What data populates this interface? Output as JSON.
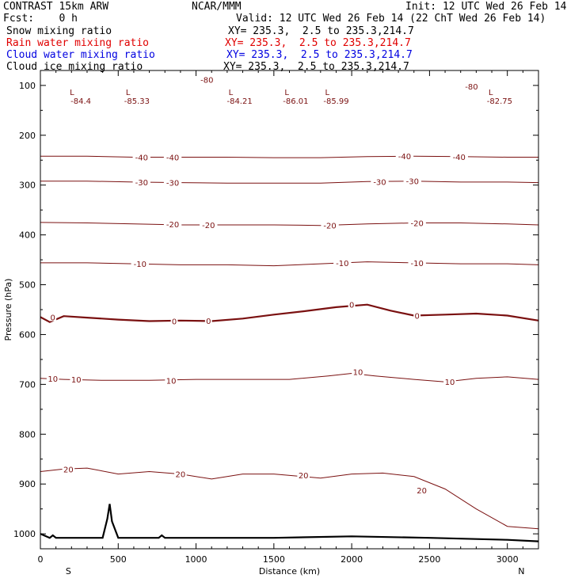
{
  "header": {
    "title_left": "CONTRAST 15km ARW",
    "title_center": "NCAR/MMM",
    "init": "Init: 12 UTC Wed 26 Feb 14",
    "fcst": "Fcst:    0 h",
    "valid": "Valid: 12 UTC Wed 26 Feb 14 (22 ChT Wed 26 Feb 14)",
    "fields": [
      {
        "name": "Snow mixing ratio",
        "xy": "XY= 235.3,  2.5 to 235.3,214.7",
        "color": "#000000"
      },
      {
        "name": "Rain water mixing ratio",
        "xy": "XY= 235.3,  2.5 to 235.3,214.7",
        "color": "#e00000"
      },
      {
        "name": "Cloud water mixing ratio",
        "xy": "XY= 235.3,  2.5 to 235.3,214.7",
        "color": "#0000e0"
      },
      {
        "name": "Cloud ice mixing ratio",
        "xy": "XY= 235.3,  2.5 to 235.3,214.7",
        "color": "#000000"
      }
    ]
  },
  "chart_data": {
    "type": "line",
    "xlabel": "Distance (km)",
    "ylabel": "Pressure (hPa)",
    "xlim": [
      0,
      3200
    ],
    "ylim": [
      1030,
      70
    ],
    "x_ticks": [
      0,
      500,
      1000,
      1500,
      2000,
      2500,
      3000
    ],
    "y_ticks": [
      100,
      200,
      300,
      400,
      500,
      600,
      700,
      800,
      900,
      1000
    ],
    "x_endpoints": {
      "left": "S",
      "right": "N"
    },
    "contour_color": "#7a1010",
    "terrain_color": "#000000",
    "isotherms": [
      {
        "value": 20,
        "p": [
          [
            0,
            875
          ],
          [
            150,
            870
          ],
          [
            300,
            868
          ],
          [
            500,
            880
          ],
          [
            700,
            875
          ],
          [
            900,
            880
          ],
          [
            1100,
            890
          ],
          [
            1300,
            880
          ],
          [
            1500,
            880
          ],
          [
            1800,
            888
          ],
          [
            2000,
            880
          ],
          [
            2200,
            878
          ],
          [
            2400,
            885
          ],
          [
            2600,
            910
          ],
          [
            2800,
            950
          ],
          [
            3000,
            985
          ],
          [
            3200,
            990
          ]
        ]
      },
      {
        "value": 10,
        "p": [
          [
            0,
            688
          ],
          [
            150,
            690
          ],
          [
            400,
            692
          ],
          [
            700,
            692
          ],
          [
            1000,
            690
          ],
          [
            1300,
            690
          ],
          [
            1600,
            690
          ],
          [
            1850,
            683
          ],
          [
            2000,
            678
          ],
          [
            2150,
            683
          ],
          [
            2400,
            690
          ],
          [
            2600,
            695
          ],
          [
            2800,
            688
          ],
          [
            3000,
            685
          ],
          [
            3200,
            690
          ]
        ]
      },
      {
        "value": 0,
        "p": [
          [
            0,
            565
          ],
          [
            60,
            575
          ],
          [
            150,
            563
          ],
          [
            300,
            566
          ],
          [
            500,
            570
          ],
          [
            700,
            573
          ],
          [
            900,
            572
          ],
          [
            1100,
            573
          ],
          [
            1300,
            568
          ],
          [
            1500,
            560
          ],
          [
            1700,
            553
          ],
          [
            1900,
            545
          ],
          [
            2100,
            540
          ],
          [
            2250,
            552
          ],
          [
            2400,
            562
          ],
          [
            2600,
            560
          ],
          [
            2800,
            558
          ],
          [
            3000,
            562
          ],
          [
            3200,
            572
          ]
        ]
      },
      {
        "value": -10,
        "p": [
          [
            0,
            456
          ],
          [
            300,
            456
          ],
          [
            600,
            458
          ],
          [
            900,
            460
          ],
          [
            1200,
            460
          ],
          [
            1500,
            462
          ],
          [
            1800,
            458
          ],
          [
            2100,
            454
          ],
          [
            2400,
            456
          ],
          [
            2700,
            458
          ],
          [
            3000,
            458
          ],
          [
            3200,
            460
          ]
        ]
      },
      {
        "value": -20,
        "p": [
          [
            0,
            375
          ],
          [
            300,
            376
          ],
          [
            600,
            378
          ],
          [
            900,
            380
          ],
          [
            1200,
            380
          ],
          [
            1500,
            380
          ],
          [
            1800,
            381
          ],
          [
            2100,
            378
          ],
          [
            2400,
            376
          ],
          [
            2700,
            376
          ],
          [
            3000,
            378
          ],
          [
            3200,
            380
          ]
        ]
      },
      {
        "value": -30,
        "p": [
          [
            0,
            292
          ],
          [
            300,
            292
          ],
          [
            600,
            294
          ],
          [
            900,
            295
          ],
          [
            1200,
            296
          ],
          [
            1500,
            296
          ],
          [
            1800,
            296
          ],
          [
            2100,
            293
          ],
          [
            2400,
            292
          ],
          [
            2700,
            294
          ],
          [
            3000,
            294
          ],
          [
            3200,
            295
          ]
        ]
      },
      {
        "value": -40,
        "p": [
          [
            0,
            242
          ],
          [
            300,
            242
          ],
          [
            600,
            244
          ],
          [
            900,
            244
          ],
          [
            1200,
            244
          ],
          [
            1500,
            245
          ],
          [
            1800,
            245
          ],
          [
            2100,
            243
          ],
          [
            2400,
            242
          ],
          [
            2700,
            243
          ],
          [
            3000,
            244
          ],
          [
            3200,
            244
          ]
        ]
      }
    ],
    "temperature_labels": [
      {
        "text": "20",
        "x": 180,
        "p": 870
      },
      {
        "text": "20",
        "x": 900,
        "p": 880
      },
      {
        "text": "20",
        "x": 1690,
        "p": 882
      },
      {
        "text": "20",
        "x": 2450,
        "p": 912
      },
      {
        "text": "10",
        "x": 80,
        "p": 688
      },
      {
        "text": "10",
        "x": 230,
        "p": 690
      },
      {
        "text": "10",
        "x": 840,
        "p": 692
      },
      {
        "text": "10",
        "x": 2040,
        "p": 675
      },
      {
        "text": "10",
        "x": 2630,
        "p": 695
      },
      {
        "text": "0",
        "x": 80,
        "p": 565
      },
      {
        "text": "0",
        "x": 860,
        "p": 573
      },
      {
        "text": "0",
        "x": 1080,
        "p": 572
      },
      {
        "text": "0",
        "x": 2000,
        "p": 540
      },
      {
        "text": "0",
        "x": 2420,
        "p": 562
      },
      {
        "text": "-10",
        "x": 640,
        "p": 458
      },
      {
        "text": "-10",
        "x": 1940,
        "p": 456
      },
      {
        "text": "-10",
        "x": 2420,
        "p": 456
      },
      {
        "text": "-20",
        "x": 850,
        "p": 378
      },
      {
        "text": "-20",
        "x": 1080,
        "p": 380
      },
      {
        "text": "-20",
        "x": 1860,
        "p": 381
      },
      {
        "text": "-20",
        "x": 2420,
        "p": 376
      },
      {
        "text": "-30",
        "x": 650,
        "p": 294
      },
      {
        "text": "-30",
        "x": 850,
        "p": 295
      },
      {
        "text": "-30",
        "x": 2180,
        "p": 293
      },
      {
        "text": "-30",
        "x": 2390,
        "p": 292
      },
      {
        "text": "-40",
        "x": 650,
        "p": 244
      },
      {
        "text": "-40",
        "x": 850,
        "p": 244
      },
      {
        "text": "-40",
        "x": 2340,
        "p": 242
      },
      {
        "text": "-40",
        "x": 2690,
        "p": 243
      },
      {
        "text": "-80",
        "x": 1070,
        "p": 88
      },
      {
        "text": "-80",
        "x": 2770,
        "p": 102
      }
    ],
    "lows": [
      {
        "label": "L",
        "value": "-84.4",
        "x": 260
      },
      {
        "label": "L",
        "value": "-85.33",
        "x": 620
      },
      {
        "label": "L",
        "value": "-84.21",
        "x": 1280
      },
      {
        "label": "L",
        "value": "-86.01",
        "x": 1640
      },
      {
        "label": "L",
        "value": "-85.99",
        "x": 1900
      },
      {
        "label": "L",
        "value": "-82.75",
        "x": 2950
      }
    ],
    "terrain_p": [
      [
        0,
        1000
      ],
      [
        60,
        1008
      ],
      [
        80,
        1003
      ],
      [
        100,
        1008
      ],
      [
        400,
        1008
      ],
      [
        430,
        970
      ],
      [
        445,
        940
      ],
      [
        460,
        975
      ],
      [
        500,
        1008
      ],
      [
        760,
        1008
      ],
      [
        780,
        1003
      ],
      [
        800,
        1008
      ],
      [
        1500,
        1008
      ],
      [
        2000,
        1005
      ],
      [
        2500,
        1008
      ],
      [
        3000,
        1012
      ],
      [
        3200,
        1015
      ]
    ]
  }
}
